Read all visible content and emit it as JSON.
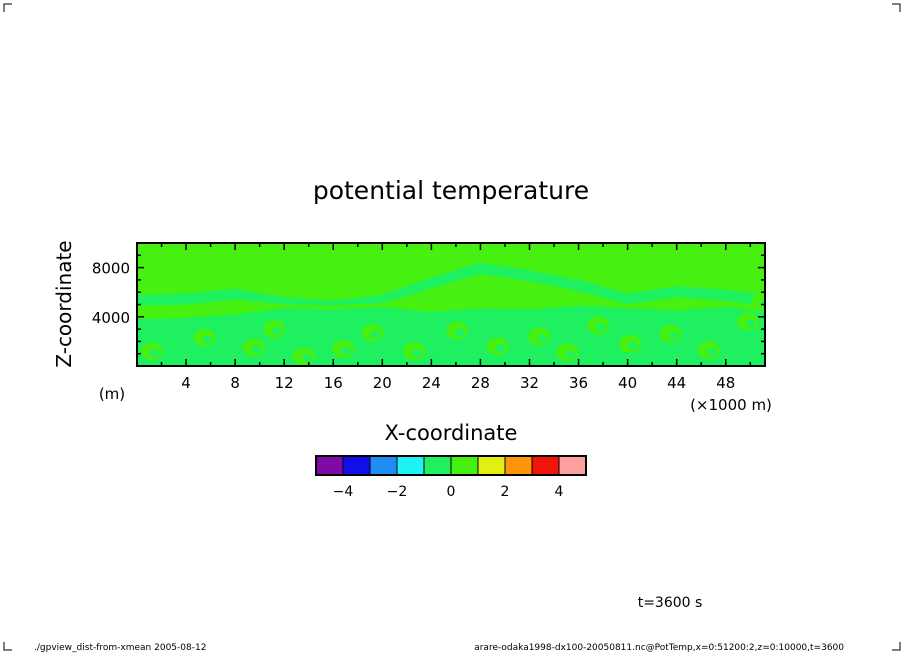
{
  "chart_data": {
    "type": "heatmap",
    "title": "potential temperature",
    "xlabel": "X-coordinate",
    "ylabel": "Z-coordinate",
    "x_unit": "(×1000 m)",
    "y_unit": "(m)",
    "xlim": [
      0,
      51.2
    ],
    "ylim": [
      0,
      10000
    ],
    "x_ticks": [
      4,
      8,
      12,
      16,
      20,
      24,
      28,
      32,
      36,
      40,
      44,
      48
    ],
    "y_ticks": [
      4000,
      8000
    ],
    "background_level": 0,
    "colorbar": {
      "levels": [
        -5,
        -4,
        -3,
        -2,
        -1,
        0,
        1,
        2,
        3,
        4,
        5
      ],
      "colors": [
        "#7f0aa8",
        "#1010e6",
        "#1f8cf2",
        "#1ff2f2",
        "#1ff060",
        "#46f010",
        "#e0f010",
        "#ff960a",
        "#f0140a",
        "#ffa0a0"
      ],
      "tick_labels": [
        "−4",
        "−2",
        "0",
        "2",
        "4"
      ],
      "tick_values": [
        -4,
        -2,
        0,
        2,
        4
      ]
    },
    "upper_band": [
      {
        "x": 0,
        "z": 5800
      },
      {
        "x": 4,
        "z": 5900
      },
      {
        "x": 8,
        "z": 6300
      },
      {
        "x": 12,
        "z": 5600
      },
      {
        "x": 16,
        "z": 5300
      },
      {
        "x": 20,
        "z": 5800
      },
      {
        "x": 24,
        "z": 7200
      },
      {
        "x": 28,
        "z": 8400
      },
      {
        "x": 32,
        "z": 7800
      },
      {
        "x": 36,
        "z": 7000
      },
      {
        "x": 40,
        "z": 5900
      },
      {
        "x": 44,
        "z": 6500
      },
      {
        "x": 48,
        "z": 6200
      },
      {
        "x": 51.2,
        "z": 5800
      }
    ],
    "lower_band": [
      {
        "x": 0,
        "z": 3800
      },
      {
        "x": 4,
        "z": 3900
      },
      {
        "x": 8,
        "z": 4200
      },
      {
        "x": 12,
        "z": 4700
      },
      {
        "x": 16,
        "z": 4600
      },
      {
        "x": 20,
        "z": 4800
      },
      {
        "x": 24,
        "z": 4400
      },
      {
        "x": 28,
        "z": 4700
      },
      {
        "x": 32,
        "z": 4600
      },
      {
        "x": 36,
        "z": 4900
      },
      {
        "x": 40,
        "z": 4700
      },
      {
        "x": 44,
        "z": 4500
      },
      {
        "x": 48,
        "z": 4800
      },
      {
        "x": 51.2,
        "z": 4400
      }
    ],
    "thermals": [
      {
        "x": 1.2,
        "z": 1200
      },
      {
        "x": 5.5,
        "z": 2300
      },
      {
        "x": 9.5,
        "z": 1500
      },
      {
        "x": 11.2,
        "z": 3000
      },
      {
        "x": 13.6,
        "z": 800
      },
      {
        "x": 16.8,
        "z": 1400
      },
      {
        "x": 19.2,
        "z": 2700
      },
      {
        "x": 22.6,
        "z": 1200
      },
      {
        "x": 26.1,
        "z": 2900
      },
      {
        "x": 29.4,
        "z": 1600
      },
      {
        "x": 32.8,
        "z": 2400
      },
      {
        "x": 35.1,
        "z": 1100
      },
      {
        "x": 37.6,
        "z": 3300
      },
      {
        "x": 40.2,
        "z": 1800
      },
      {
        "x": 43.5,
        "z": 2600
      },
      {
        "x": 46.6,
        "z": 1300
      },
      {
        "x": 49.8,
        "z": 3600
      },
      {
        "x": 51.0,
        "z": 5200
      }
    ]
  },
  "annotations": {
    "time": "t=3600 s",
    "footer_left": "./gpview_dist-from-xmean  2005-08-12",
    "footer_right": "arare-odaka1998-dx100-20050811.nc@PotTemp,x=0:51200:2,z=0:10000,t=3600"
  }
}
